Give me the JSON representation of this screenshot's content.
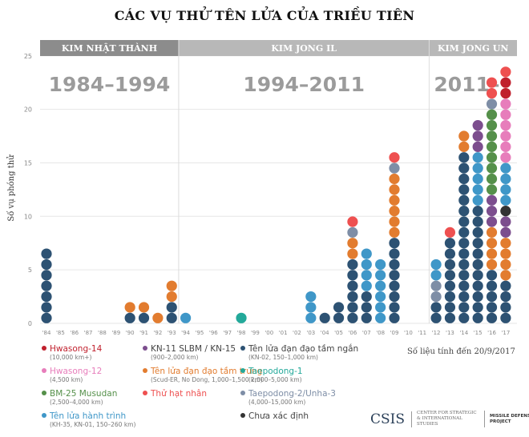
{
  "title": "CÁC VỤ THỬ TÊN LỬA CỦA TRIỀU TIÊN",
  "chart_data": {
    "type": "stacked-dot",
    "ylabel": "Số vụ phóng thử",
    "ylim": [
      0,
      25
    ],
    "yticks": [
      0,
      5,
      10,
      15,
      20,
      25
    ],
    "grid": true,
    "years": [
      "'84",
      "'85",
      "'86",
      "'87",
      "'88",
      "'89",
      "'90",
      "'91",
      "'92",
      "'93",
      "'94",
      "'95",
      "'96",
      "'97",
      "'98",
      "'99",
      "'00",
      "'01",
      "'02",
      "'03",
      "'04",
      "'05",
      "'06",
      "'07",
      "'08",
      "'09",
      "'10",
      "'11",
      "'12",
      "'13",
      "'14",
      "'15",
      "'16",
      "'17"
    ],
    "periods": [
      {
        "label": "KIM NHẬT THÀNH",
        "years_label": "1984–1994",
        "from": "'84",
        "to": "'93",
        "color": "#8c8c8c"
      },
      {
        "label": "KIM JONG IL",
        "years_label": "1994–2011",
        "from": "'94",
        "to": "'11",
        "color": "#b8b8b8"
      },
      {
        "label": "KIM JONG UN",
        "years_label": "2011–",
        "from": "'12",
        "to": "'17",
        "color": "#b8b8b8"
      }
    ],
    "categories": {
      "H14": {
        "name": "Hwasong-14",
        "range": "(10,000 km+)",
        "color": "#c0202d"
      },
      "H12": {
        "name": "Hwasong-12",
        "range": "(4,500 km)",
        "color": "#e77dbb"
      },
      "BM25": {
        "name": "BM-25 Musudan",
        "range": "(2,500–4,000 km)",
        "color": "#55904a"
      },
      "CR": {
        "name": "Tên lửa hành trình",
        "range": "(KH-35, KN-01, 150–260 km)",
        "color": "#3f97c8"
      },
      "KN11": {
        "name": "KN-11 SLBM / KN-15",
        "range": "(900–2,000 km)",
        "color": "#7c4e8e"
      },
      "MR": {
        "name": "Tên lửa đạn đạo tầm trung",
        "range": "(Scud-ER, No Dong, 1,000–1,500 km)",
        "color": "#e27c2f"
      },
      "NU": {
        "name": "Thử hạt nhân",
        "range": "",
        "color": "#ee5050"
      },
      "SR": {
        "name": "Tên lửa đạn đạo tầm ngắn",
        "range": "(KN-02, 150–1,000 km)",
        "color": "#2d5273"
      },
      "TP1": {
        "name": "Taepodong-1",
        "range": "(2,000–5,000 km)",
        "color": "#23a99a"
      },
      "TP2": {
        "name": "Taepodong-2/Unha-3",
        "range": "(4,000–15,000 km)",
        "color": "#7e8ea6"
      },
      "UN": {
        "name": "Chưa xác định",
        "range": "",
        "color": "#333333"
      }
    },
    "stacks": {
      "'84": [
        "SR",
        "SR",
        "SR",
        "SR",
        "SR",
        "SR",
        "SR"
      ],
      "'90": [
        "SR",
        "MR"
      ],
      "'91": [
        "SR",
        "MR"
      ],
      "'92": [
        "MR"
      ],
      "'93": [
        "SR",
        "SR",
        "MR",
        "MR"
      ],
      "'94": [
        "CR"
      ],
      "'98": [
        "TP1"
      ],
      "'03": [
        "CR",
        "CR",
        "CR"
      ],
      "'04": [
        "SR"
      ],
      "'05": [
        "SR",
        "SR"
      ],
      "'06": [
        "SR",
        "SR",
        "SR",
        "SR",
        "SR",
        "SR",
        "MR",
        "MR",
        "TP2",
        "NU"
      ],
      "'07": [
        "SR",
        "SR",
        "SR",
        "CR",
        "CR",
        "CR",
        "CR"
      ],
      "'08": [
        "CR",
        "CR",
        "CR",
        "CR",
        "CR",
        "CR"
      ],
      "'09": [
        "SR",
        "SR",
        "SR",
        "SR",
        "SR",
        "SR",
        "SR",
        "SR",
        "MR",
        "MR",
        "MR",
        "MR",
        "MR",
        "MR",
        "TP2",
        "NU"
      ],
      "'12": [
        "SR",
        "SR",
        "TP2",
        "TP2",
        "CR",
        "CR"
      ],
      "'13": [
        "SR",
        "SR",
        "SR",
        "SR",
        "SR",
        "SR",
        "SR",
        "SR",
        "NU"
      ],
      "'14": [
        "SR",
        "SR",
        "SR",
        "SR",
        "SR",
        "SR",
        "SR",
        "SR",
        "SR",
        "SR",
        "SR",
        "SR",
        "SR",
        "SR",
        "SR",
        "SR",
        "MR",
        "MR"
      ],
      "'15": [
        "SR",
        "SR",
        "SR",
        "SR",
        "SR",
        "SR",
        "SR",
        "SR",
        "SR",
        "SR",
        "SR",
        "CR",
        "CR",
        "CR",
        "CR",
        "CR",
        "KN11",
        "KN11",
        "KN11"
      ],
      "'16": [
        "SR",
        "SR",
        "SR",
        "SR",
        "SR",
        "MR",
        "MR",
        "MR",
        "MR",
        "KN11",
        "KN11",
        "KN11",
        "BM25",
        "BM25",
        "BM25",
        "BM25",
        "BM25",
        "BM25",
        "BM25",
        "BM25",
        "TP2",
        "NU",
        "NU"
      ],
      "'17": [
        "SR",
        "SR",
        "SR",
        "SR",
        "MR",
        "MR",
        "MR",
        "MR",
        "KN11",
        "KN11",
        "UN",
        "CR",
        "CR",
        "CR",
        "CR",
        "H12",
        "H12",
        "H12",
        "H12",
        "H12",
        "H12",
        "H14",
        "H14",
        "NU"
      ]
    },
    "legend_columns": [
      [
        "H14",
        "H12",
        "BM25",
        "CR"
      ],
      [
        "KN11",
        "MR",
        "NU"
      ],
      [
        "SR",
        "TP1",
        "TP2",
        "UN"
      ]
    ]
  },
  "footer": {
    "as_of": "Số liệu tính đến 20/9/2017",
    "logo": "CSIS",
    "org": "CENTER FOR STRATEGIC & INTERNATIONAL STUDIES",
    "project": "MISSILE DEFENSE PROJECT"
  }
}
